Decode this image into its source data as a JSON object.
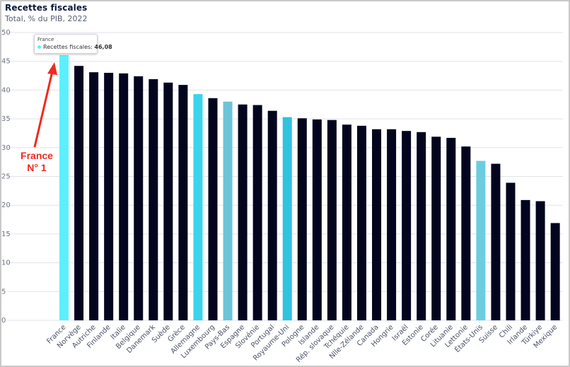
{
  "chart_data": {
    "type": "bar",
    "title": "Recettes fiscales",
    "subtitle": "Total, % du PIB, 2022",
    "ylim": [
      0,
      50
    ],
    "yticks": [
      "0",
      "5",
      "10",
      "15",
      "20",
      "25",
      "30",
      "35",
      "40",
      "45",
      "50"
    ],
    "grid": true,
    "categories": [
      "France",
      "Norvège",
      "Autriche",
      "Finlande",
      "Italie",
      "Belgique",
      "Danemark",
      "Suède",
      "Grèce",
      "Allemagne",
      "Luxembourg",
      "Pays-Bas",
      "Espagne",
      "Slovénie",
      "Portugal",
      "Royaume-Uni",
      "Pologne",
      "Islande",
      "Rép. slovaque",
      "Tchéquie",
      "Nlle-Zélande",
      "Canada",
      "Hongrie",
      "Israël",
      "Estonie",
      "Corée",
      "Lituanie",
      "Lettonie",
      "États-Unis",
      "Suisse",
      "Chili",
      "Irlande",
      "Türkiye",
      "Mexique"
    ],
    "values": [
      46.08,
      44.2,
      43.1,
      43.0,
      42.9,
      42.4,
      41.9,
      41.3,
      40.9,
      39.3,
      38.6,
      38.0,
      37.5,
      37.4,
      36.4,
      35.3,
      35.1,
      34.9,
      34.8,
      34.0,
      33.8,
      33.2,
      33.2,
      32.9,
      32.7,
      31.9,
      31.7,
      30.2,
      27.7,
      27.2,
      23.9,
      20.9,
      20.7,
      16.9
    ],
    "colors": [
      "#5cf0ff",
      "#03051f",
      "#03051f",
      "#03051f",
      "#03051f",
      "#03051f",
      "#03051f",
      "#03051f",
      "#03051f",
      "#3ad4ee",
      "#03051f",
      "#6cc4d8",
      "#03051f",
      "#03051f",
      "#03051f",
      "#2fc3df",
      "#03051f",
      "#03051f",
      "#03051f",
      "#03051f",
      "#03051f",
      "#03051f",
      "#03051f",
      "#03051f",
      "#03051f",
      "#03051f",
      "#03051f",
      "#03051f",
      "#6ccde0",
      "#03051f",
      "#03051f",
      "#03051f",
      "#03051f",
      "#03051f"
    ],
    "gridColor": "#dfe3ea",
    "tooltip": {
      "country": "France",
      "label": "Recettes fiscales:",
      "value": "46,08",
      "dotColor": "#5cf0ff"
    },
    "annotation": {
      "line1": "France",
      "line2": "N° 1",
      "arrowColor": "#ee2b1e"
    }
  }
}
